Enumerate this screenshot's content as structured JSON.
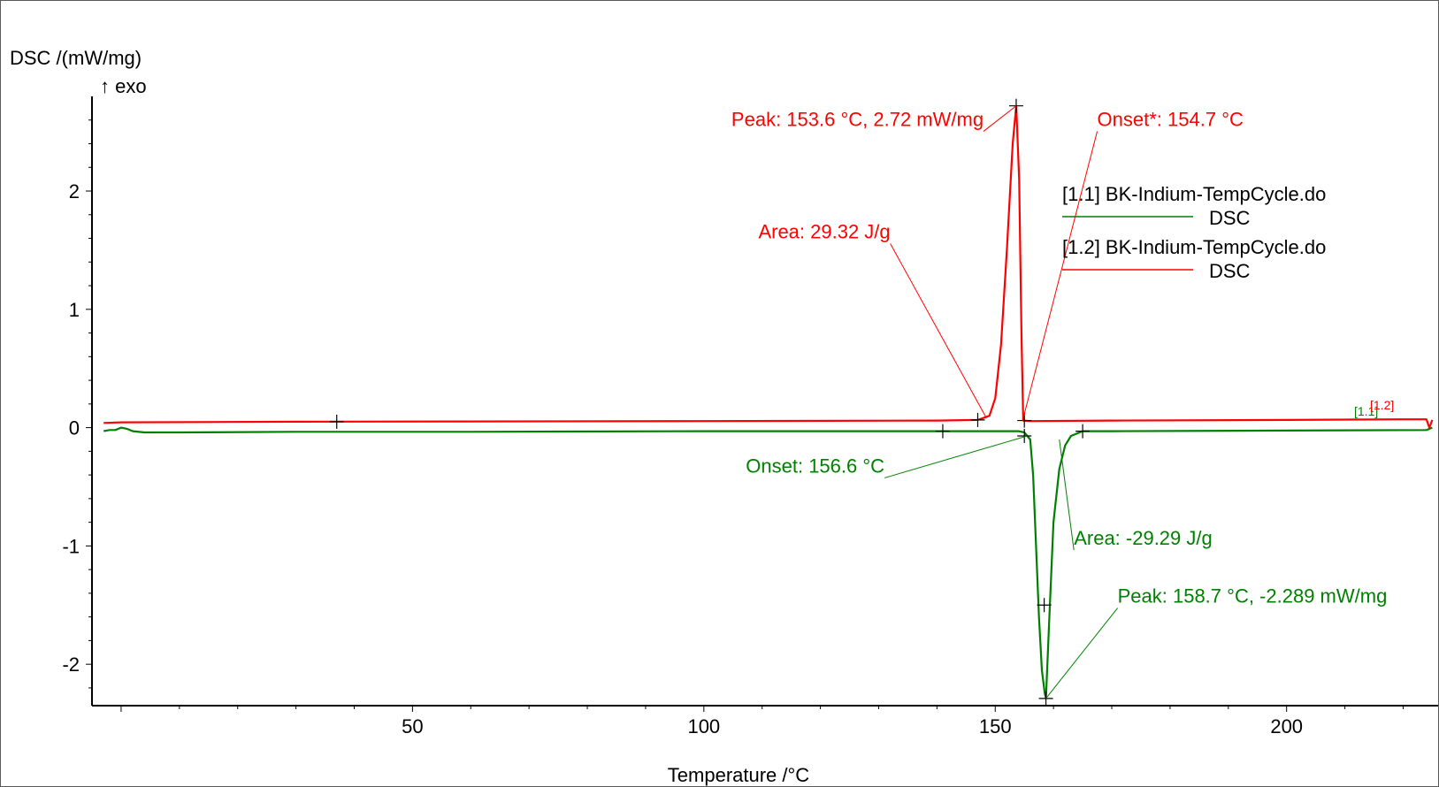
{
  "chart_data": {
    "type": "line",
    "title": "",
    "ylabel": "DSC /(mW/mg)",
    "ylabel_note": "↑ exo",
    "xlabel": "Temperature /°C",
    "xlim": [
      -5,
      226
    ],
    "ylim": [
      -2.35,
      2.8
    ],
    "grid": false,
    "legend_position": "top-right",
    "x_ticks": [
      {
        "value": 50,
        "label": "50"
      },
      {
        "value": 100,
        "label": "100"
      },
      {
        "value": 150,
        "label": "150"
      },
      {
        "value": 200,
        "label": "200"
      }
    ],
    "y_ticks": [
      {
        "value": 2,
        "label": "2"
      },
      {
        "value": 1,
        "label": "1"
      },
      {
        "value": 0,
        "label": "0"
      },
      {
        "value": -1,
        "label": "-1"
      },
      {
        "value": -2,
        "label": "-2"
      }
    ],
    "series": [
      {
        "name": "[1.1] BK-Indium-TempCycle.do",
        "sub": "DSC",
        "color": "#008000",
        "x": [
          -3,
          -2,
          -1,
          0,
          1,
          2,
          4,
          10,
          30,
          60,
          100,
          140,
          150,
          154,
          155,
          156,
          156.5,
          157,
          157.5,
          158,
          158.5,
          158.7,
          159.2,
          160,
          161,
          162,
          163,
          165,
          170,
          200,
          224,
          225
        ],
        "y": [
          -0.03,
          -0.02,
          -0.02,
          0.0,
          -0.01,
          -0.03,
          -0.04,
          -0.04,
          -0.035,
          -0.035,
          -0.03,
          -0.03,
          -0.03,
          -0.03,
          -0.04,
          -0.1,
          -0.4,
          -1.0,
          -1.6,
          -2.05,
          -2.25,
          -2.289,
          -1.7,
          -0.8,
          -0.35,
          -0.15,
          -0.07,
          -0.03,
          -0.03,
          -0.025,
          -0.02,
          0.0
        ]
      },
      {
        "name": "[1.2] BK-Indium-TempCycle.do",
        "sub": "DSC",
        "color": "#ff0000",
        "x": [
          -3,
          0,
          30,
          60,
          100,
          140,
          147,
          149,
          150,
          151,
          152,
          153,
          153.6,
          154.1,
          154.5,
          154.8,
          156,
          170,
          200,
          220,
          224,
          224.5,
          225
        ],
        "y": [
          0.04,
          0.045,
          0.05,
          0.052,
          0.055,
          0.06,
          0.065,
          0.1,
          0.25,
          0.7,
          1.5,
          2.4,
          2.72,
          2.1,
          0.8,
          0.06,
          0.055,
          0.06,
          0.065,
          0.07,
          0.07,
          0.0,
          0.065
        ]
      }
    ],
    "markers": [
      {
        "series": 1,
        "x": 37,
        "y": 0.05
      },
      {
        "series": 1,
        "x": 147,
        "y": 0.065
      },
      {
        "series": 1,
        "x": 155,
        "y": 0.06
      },
      {
        "series": 1,
        "x": 153.6,
        "y": 2.72
      },
      {
        "series": 0,
        "x": 141,
        "y": -0.03
      },
      {
        "series": 0,
        "x": 155,
        "y": -0.07
      },
      {
        "series": 0,
        "x": 165,
        "y": -0.03
      },
      {
        "series": 0,
        "x": 158.4,
        "y": -1.5
      },
      {
        "series": 0,
        "x": 158.7,
        "y": -2.289
      }
    ],
    "annotations": [
      {
        "text": "Peak: 153.6 °C, 2.72 mW/mg",
        "color": "#ff0000",
        "anchor_x": 153.6,
        "anchor_y": 2.72,
        "label_x": 148,
        "label_y": 2.55,
        "align": "end"
      },
      {
        "text": "Onset*: 154.7 °C",
        "color": "#ff0000",
        "anchor_x": 154.7,
        "anchor_y": 0.06,
        "label_x": 167.5,
        "label_y": 2.55,
        "align": "start"
      },
      {
        "text": "Area: 29.32 J/g",
        "color": "#ff0000",
        "anchor_x": 148.5,
        "anchor_y": 0.08,
        "label_x": 132,
        "label_y": 1.6,
        "align": "end"
      },
      {
        "text": "Onset: 156.6 °C",
        "color": "#008000",
        "anchor_x": 155.5,
        "anchor_y": -0.07,
        "label_x": 131,
        "label_y": -0.38,
        "align": "end"
      },
      {
        "text": "Area: -29.29 J/g",
        "color": "#008000",
        "anchor_x": 161,
        "anchor_y": -0.1,
        "label_x": 163.5,
        "label_y": -0.99,
        "align": "start"
      },
      {
        "text": "Peak: 158.7 °C, -2.289 mW/mg",
        "color": "#008000",
        "anchor_x": 158.7,
        "anchor_y": -2.289,
        "label_x": 171,
        "label_y": -1.48,
        "align": "start"
      }
    ],
    "end_labels": [
      {
        "text": "[1.1]",
        "color": "#008000"
      },
      {
        "text": "[1.2]",
        "color": "#ff0000"
      }
    ]
  }
}
